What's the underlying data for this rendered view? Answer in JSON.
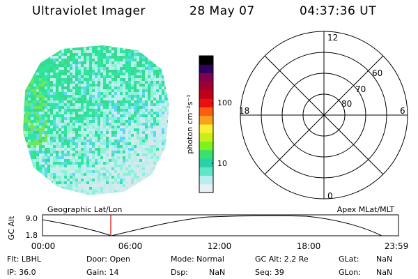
{
  "header": {
    "title": "Ultraviolet Imager",
    "date": "28 May 07",
    "time": "04:37:36 UT"
  },
  "image": {
    "colors": [
      "#2ee6a0",
      "#3ad88a",
      "#8df0d8",
      "#b8f0f0",
      "#d8e8ec",
      "#5dd8f0",
      "#6ee85a"
    ]
  },
  "colorbar": {
    "axis_label": "photon cm⁻²s⁻¹",
    "ticks": [
      "100",
      "10"
    ],
    "colors": [
      "#e8f0f4",
      "#b8eef0",
      "#5ee6c8",
      "#2ad0a8",
      "#38e070",
      "#7ff020",
      "#c8f018",
      "#f8f030",
      "#f8a020",
      "#f86010",
      "#e81010",
      "#c00018",
      "#a00030",
      "#800050",
      "#300060",
      "#000000"
    ]
  },
  "polar": {
    "clock_labels": {
      "top": "12",
      "bottom": "0",
      "left": "18",
      "right": "6"
    },
    "lat_labels": [
      "60",
      "70",
      "80"
    ]
  },
  "timeline": {
    "left_label": "Geographic Lat/Lon",
    "right_label": "Apex MLat/MLT",
    "y_axis_title": "GC Alt",
    "y_ticks": [
      "9.0",
      "1.8"
    ],
    "x_ticks": [
      "00:00",
      "06:00",
      "12:00",
      "18:00",
      "23:59"
    ],
    "current_time_color": "#e00000"
  },
  "info": {
    "row1": {
      "flt": "Flt: LBHL",
      "door": "Door: Open",
      "mode": "Mode: Normal",
      "gc_alt": "GC Alt: 2.2 Re",
      "glat_label": "GLat:",
      "glat_value": "NaN"
    },
    "row2": {
      "ip": "IP: 36.0",
      "gain": "Gain: 14",
      "dsp_label": "Dsp:",
      "dsp_value": "NaN",
      "seq": "Seq: 39",
      "glon_label": "GLon:",
      "glon_value": "NaN"
    }
  }
}
